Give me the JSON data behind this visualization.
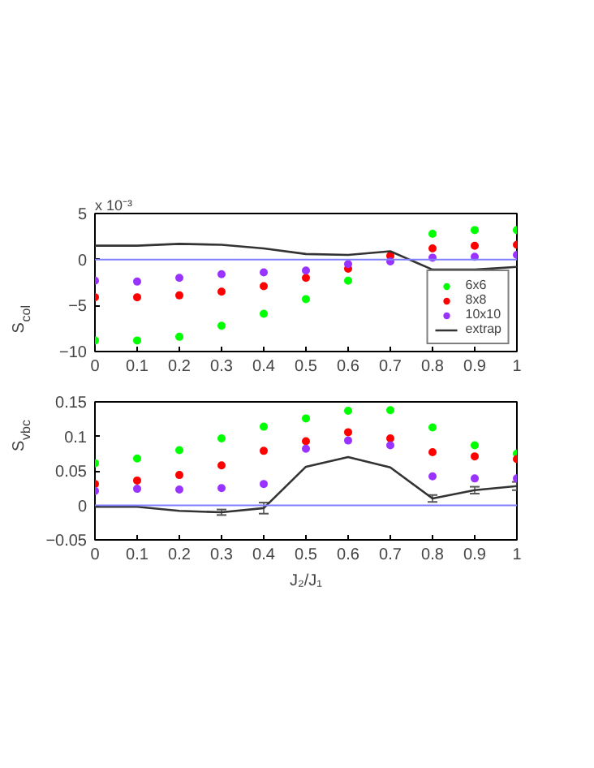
{
  "chart_data": [
    {
      "type": "scatter",
      "ylabel": "S$_{col}$",
      "annotations": [
        "x 10⁻³"
      ],
      "x": [
        0,
        0.1,
        0.2,
        0.3,
        0.4,
        0.5,
        0.6,
        0.7,
        0.8,
        0.9,
        1
      ],
      "xlim": [
        0,
        1
      ],
      "xticks": [
        0,
        0.1,
        0.2,
        0.3,
        0.4,
        0.5,
        0.6,
        0.7,
        0.8,
        0.9,
        1
      ],
      "ylim": [
        -10,
        5
      ],
      "yticks": [
        -10,
        -5,
        0,
        5
      ],
      "grid": false,
      "legend": "bottom right",
      "ref_lines": [
        {
          "axis": "y",
          "value": 0,
          "color": "#8080ff"
        }
      ],
      "series": [
        {
          "name": "6x6",
          "marker": "circle",
          "color": "#00ff00",
          "values": [
            -8.8,
            -8.8,
            -8.4,
            -7.2,
            -5.9,
            -4.3,
            -2.3,
            null,
            2.8,
            3.2,
            3.2
          ]
        },
        {
          "name": "8x8",
          "marker": "circle",
          "color": "#ff0000",
          "values": [
            -4.1,
            -4.1,
            -3.9,
            -3.5,
            -2.9,
            -2.0,
            -1.0,
            0.4,
            1.2,
            1.5,
            1.6
          ]
        },
        {
          "name": "10x10",
          "marker": "circle",
          "color": "#9933ff",
          "values": [
            -2.3,
            -2.4,
            -2.0,
            -1.6,
            -1.4,
            -1.2,
            -0.5,
            -0.2,
            0.2,
            0.3,
            0.5
          ]
        },
        {
          "name": "extrap",
          "type": "line",
          "color": "#333333",
          "values": [
            1.5,
            1.5,
            1.7,
            1.6,
            1.2,
            0.6,
            0.5,
            0.9,
            -1.1,
            -1.1,
            -0.8
          ]
        }
      ]
    },
    {
      "type": "scatter",
      "ylabel": "S$_{vbc}$",
      "xlabel": "J₂/J₁",
      "x": [
        0,
        0.1,
        0.2,
        0.3,
        0.4,
        0.5,
        0.6,
        0.7,
        0.8,
        0.9,
        1
      ],
      "xlim": [
        0,
        1
      ],
      "xticks": [
        0,
        0.1,
        0.2,
        0.3,
        0.4,
        0.5,
        0.6,
        0.7,
        0.8,
        0.9,
        1
      ],
      "ylim": [
        -0.05,
        0.15
      ],
      "yticks": [
        -0.05,
        0,
        0.05,
        0.1,
        0.15
      ],
      "grid": false,
      "ref_lines": [
        {
          "axis": "y",
          "value": 0,
          "color": "#8080ff"
        }
      ],
      "series": [
        {
          "marker": "circle",
          "color": "#00ff00",
          "values": [
            0.061,
            0.068,
            0.08,
            0.097,
            0.114,
            0.126,
            0.137,
            0.138,
            0.113,
            0.087,
            0.075
          ]
        },
        {
          "marker": "circle",
          "color": "#ff0000",
          "values": [
            0.031,
            0.036,
            0.044,
            0.058,
            0.079,
            0.093,
            0.106,
            0.097,
            0.077,
            0.071,
            0.067
          ]
        },
        {
          "marker": "circle",
          "color": "#9933ff",
          "values": [
            0.021,
            0.024,
            0.023,
            0.025,
            0.031,
            0.082,
            0.094,
            0.087,
            0.042,
            0.039,
            0.039
          ]
        },
        {
          "type": "line",
          "color": "#333333",
          "values": [
            -0.002,
            -0.002,
            -0.008,
            -0.01,
            -0.004,
            0.056,
            0.07,
            0.055,
            0.01,
            0.022,
            0.028
          ],
          "errors": [
            null,
            null,
            null,
            0.004,
            0.008,
            null,
            null,
            null,
            0.005,
            0.005,
            0.006
          ]
        }
      ]
    }
  ]
}
